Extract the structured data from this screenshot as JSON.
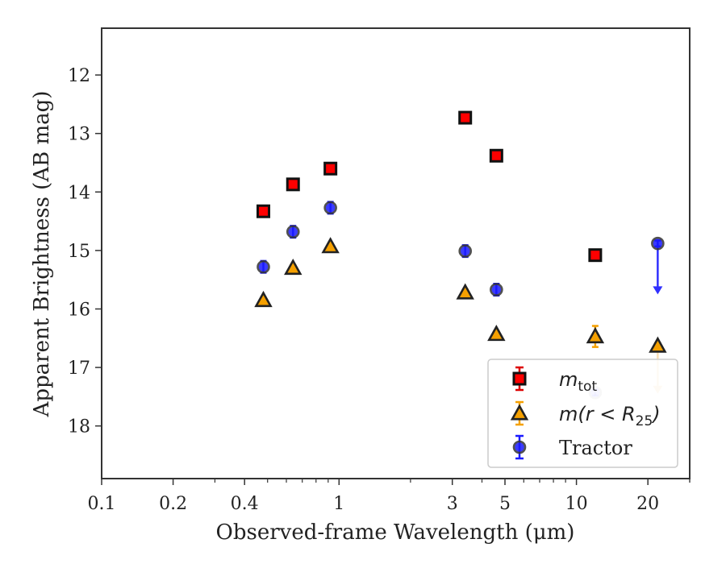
{
  "chart_data": {
    "type": "scatter",
    "xscale": "log",
    "xlim": [
      0.1,
      30
    ],
    "ylim": [
      18.9,
      11.2
    ],
    "y_inverted": true,
    "xlabel": "Observed-frame Wavelength (μm)",
    "ylabel": "Apparent Brightness (AB mag)",
    "x_tick_labels": [
      "0.1",
      "0.2",
      "0.4",
      "1",
      "3",
      "5",
      "10",
      "20"
    ],
    "x_tick_values": [
      0.1,
      0.2,
      0.4,
      1,
      3,
      5,
      10,
      20
    ],
    "y_tick_labels": [
      "12",
      "13",
      "14",
      "15",
      "16",
      "17",
      "18"
    ],
    "y_tick_values": [
      12,
      13,
      14,
      15,
      16,
      17,
      18
    ],
    "legend_position": "lower-right",
    "series": [
      {
        "name": "m_tot",
        "legend_main": "m",
        "legend_sub": "tot",
        "marker": "square",
        "color": "#ff0000",
        "edge": "#111111",
        "errcolor": "#dd0000",
        "points": [
          {
            "x": 0.48,
            "y": 14.33,
            "err": 0.05
          },
          {
            "x": 0.64,
            "y": 13.87,
            "err": 0.05
          },
          {
            "x": 0.92,
            "y": 13.6,
            "err": 0.05
          },
          {
            "x": 3.4,
            "y": 12.73,
            "err": 0.05
          },
          {
            "x": 4.6,
            "y": 13.38,
            "err": 0.05
          },
          {
            "x": 12.0,
            "y": 15.08,
            "err": 0.05
          }
        ]
      },
      {
        "name": "m(r<R25)",
        "legend_main": "m(r < R",
        "legend_sub": "25",
        "legend_tail": ")",
        "marker": "triangle",
        "color": "#f5a000",
        "edge": "#222222",
        "errcolor": "#f5a000",
        "points": [
          {
            "x": 0.48,
            "y": 15.85,
            "err": 0.05
          },
          {
            "x": 0.64,
            "y": 15.3,
            "err": 0.05
          },
          {
            "x": 0.92,
            "y": 14.93,
            "err": 0.05
          },
          {
            "x": 3.4,
            "y": 15.72,
            "err": 0.05
          },
          {
            "x": 4.6,
            "y": 16.43,
            "err": 0.05
          },
          {
            "x": 12.0,
            "y": 16.47,
            "err": 0.18
          },
          {
            "x": 22.0,
            "y": 16.63,
            "err": 0.05,
            "upper_limit_arrow_to": 17.45
          }
        ]
      },
      {
        "name": "Tractor",
        "legend_main": "Tractor",
        "marker": "circle",
        "color": "#1a1aff",
        "edge": "#333333",
        "errcolor": "#1a1aff",
        "points": [
          {
            "x": 0.48,
            "y": 15.28,
            "err": 0.1
          },
          {
            "x": 0.64,
            "y": 14.68,
            "err": 0.1
          },
          {
            "x": 0.92,
            "y": 14.27,
            "err": 0.1
          },
          {
            "x": 3.4,
            "y": 15.01,
            "err": 0.1
          },
          {
            "x": 4.6,
            "y": 15.67,
            "err": 0.1
          },
          {
            "x": 12.0,
            "y": 17.43,
            "err": 0.05
          },
          {
            "x": 22.0,
            "y": 14.88,
            "err": 0.05,
            "upper_limit_arrow_to": 15.75
          }
        ]
      }
    ]
  }
}
